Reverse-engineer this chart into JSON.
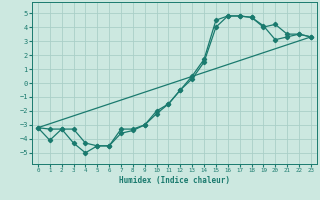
{
  "xlabel": "Humidex (Indice chaleur)",
  "bg_color": "#cce8e0",
  "grid_color": "#aacfc8",
  "line_color": "#1a7a6e",
  "xlim": [
    -0.5,
    23.5
  ],
  "ylim": [
    -5.8,
    5.8
  ],
  "xticks": [
    0,
    1,
    2,
    3,
    4,
    5,
    6,
    7,
    8,
    9,
    10,
    11,
    12,
    13,
    14,
    15,
    16,
    17,
    18,
    19,
    20,
    21,
    22,
    23
  ],
  "yticks": [
    -5,
    -4,
    -3,
    -2,
    -1,
    0,
    1,
    2,
    3,
    4,
    5
  ],
  "line1_x": [
    0,
    1,
    2,
    3,
    4,
    5,
    6,
    7,
    8,
    9,
    10,
    11,
    12,
    13,
    14,
    15,
    16,
    17,
    18,
    19,
    20,
    21,
    22,
    23
  ],
  "line1_y": [
    -3.2,
    -4.1,
    -3.3,
    -4.3,
    -5.0,
    -4.5,
    -4.5,
    -3.3,
    -3.3,
    -3.0,
    -2.0,
    -1.5,
    -0.5,
    0.5,
    1.7,
    4.5,
    4.8,
    4.8,
    4.7,
    4.1,
    3.1,
    3.3,
    3.5,
    3.3
  ],
  "line2_x": [
    0,
    1,
    2,
    3,
    4,
    5,
    6,
    7,
    8,
    9,
    10,
    11,
    12,
    13,
    14,
    15,
    16,
    17,
    18,
    19,
    20,
    21,
    22,
    23
  ],
  "line2_y": [
    -3.2,
    -3.3,
    -3.3,
    -3.3,
    -4.3,
    -4.5,
    -4.5,
    -3.6,
    -3.4,
    -3.0,
    -2.2,
    -1.5,
    -0.5,
    0.3,
    1.5,
    4.0,
    4.8,
    4.8,
    4.7,
    4.0,
    4.2,
    3.5,
    3.5,
    3.3
  ],
  "line3_x": [
    0,
    23
  ],
  "line3_y": [
    -3.2,
    3.3
  ]
}
